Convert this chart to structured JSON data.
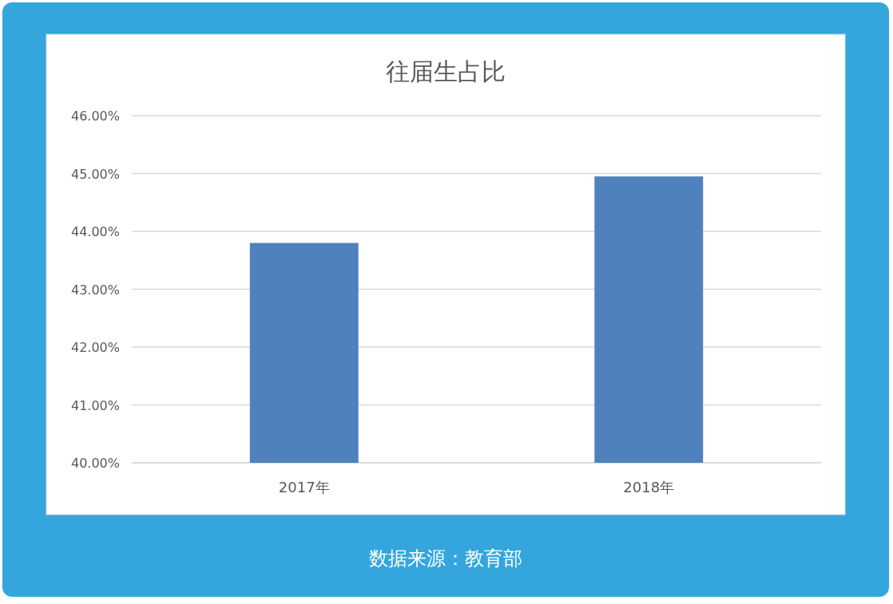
{
  "chart_data": {
    "type": "bar",
    "title": "往届生占比",
    "categories": [
      "2017年",
      "2018年"
    ],
    "values": [
      43.8,
      44.95
    ],
    "color": "#4f81bd",
    "ylim": [
      40,
      46
    ],
    "yticks": [
      {
        "value": 40,
        "label": "40.00%"
      },
      {
        "value": 41,
        "label": "41.00%"
      },
      {
        "value": 42,
        "label": "42.00%"
      },
      {
        "value": 43,
        "label": "43.00%"
      },
      {
        "value": 44,
        "label": "44.00%"
      },
      {
        "value": 45,
        "label": "45.00%"
      },
      {
        "value": 46,
        "label": "46.00%"
      }
    ],
    "grid": "y",
    "annotations": [
      "数据来源：教育部"
    ]
  }
}
